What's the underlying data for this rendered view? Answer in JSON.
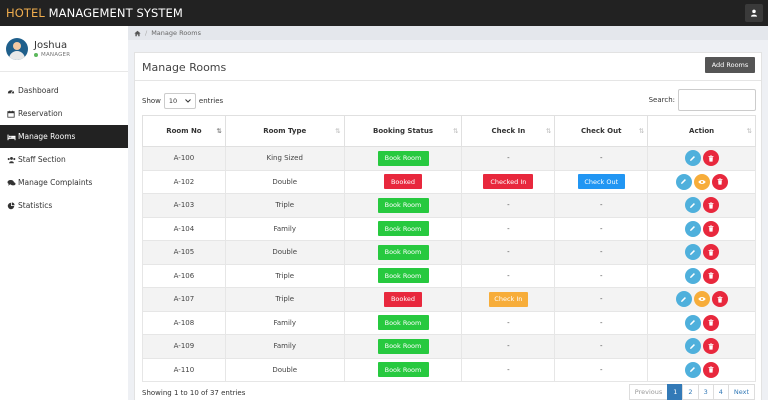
{
  "app": {
    "title_prefix": "HOTEL",
    "title_rest": " MANAGEMENT SYSTEM"
  },
  "user": {
    "name": "Joshua",
    "role": "MANAGER"
  },
  "sidebar": {
    "items": [
      {
        "label": "Dashboard",
        "icon": "dashboard-icon"
      },
      {
        "label": "Reservation",
        "icon": "calendar-icon"
      },
      {
        "label": "Manage Rooms",
        "icon": "bed-icon",
        "active": true
      },
      {
        "label": "Staff Section",
        "icon": "users-icon"
      },
      {
        "label": "Manage Complaints",
        "icon": "comments-icon"
      },
      {
        "label": "Statistics",
        "icon": "pie-chart-icon"
      }
    ]
  },
  "breadcrumb": {
    "current": "Manage Rooms"
  },
  "page": {
    "title": "Manage Rooms",
    "add_label": "Add Rooms"
  },
  "table_controls": {
    "show_label": "Show",
    "entries_value": "10",
    "entries_label": "entries",
    "search_label": "Search:"
  },
  "table": {
    "columns": [
      "Room No",
      "Room Type",
      "Booking Status",
      "Check In",
      "Check Out",
      "Action"
    ],
    "rows": [
      {
        "room": "A-100",
        "type": "King Sized",
        "status": "Book Room",
        "checkin": "-",
        "checkout": "-",
        "actions": [
          "edit",
          "delete"
        ]
      },
      {
        "room": "A-102",
        "type": "Double",
        "status": "Booked",
        "checkin": "Checked In",
        "checkout": "Check Out",
        "actions": [
          "edit",
          "view",
          "delete"
        ]
      },
      {
        "room": "A-103",
        "type": "Triple",
        "status": "Book Room",
        "checkin": "-",
        "checkout": "-",
        "actions": [
          "edit",
          "delete"
        ]
      },
      {
        "room": "A-104",
        "type": "Family",
        "status": "Book Room",
        "checkin": "-",
        "checkout": "-",
        "actions": [
          "edit",
          "delete"
        ]
      },
      {
        "room": "A-105",
        "type": "Double",
        "status": "Book Room",
        "checkin": "-",
        "checkout": "-",
        "actions": [
          "edit",
          "delete"
        ]
      },
      {
        "room": "A-106",
        "type": "Triple",
        "status": "Book Room",
        "checkin": "-",
        "checkout": "-",
        "actions": [
          "edit",
          "delete"
        ]
      },
      {
        "room": "A-107",
        "type": "Triple",
        "status": "Booked",
        "checkin": "Check In",
        "checkout": "-",
        "actions": [
          "edit",
          "view",
          "delete"
        ]
      },
      {
        "room": "A-108",
        "type": "Family",
        "status": "Book Room",
        "checkin": "-",
        "checkout": "-",
        "actions": [
          "edit",
          "delete"
        ]
      },
      {
        "room": "A-109",
        "type": "Family",
        "status": "Book Room",
        "checkin": "-",
        "checkout": "-",
        "actions": [
          "edit",
          "delete"
        ]
      },
      {
        "room": "A-110",
        "type": "Double",
        "status": "Book Room",
        "checkin": "-",
        "checkout": "-",
        "actions": [
          "edit",
          "delete"
        ]
      }
    ]
  },
  "footer": {
    "info": "Showing 1 to 10 of 37 entries"
  },
  "pagination": {
    "previous": "Previous",
    "pages": [
      "1",
      "2",
      "3",
      "4"
    ],
    "next": "Next",
    "active_page": "1"
  },
  "colors": {
    "topbar": "#222222",
    "brand_accent": "#f0ad4e",
    "book": "#27c93f",
    "booked": "#e8283d",
    "checkout": "#2196f3",
    "checkin": "#f7ad3a",
    "page_active": "#337ab7"
  }
}
